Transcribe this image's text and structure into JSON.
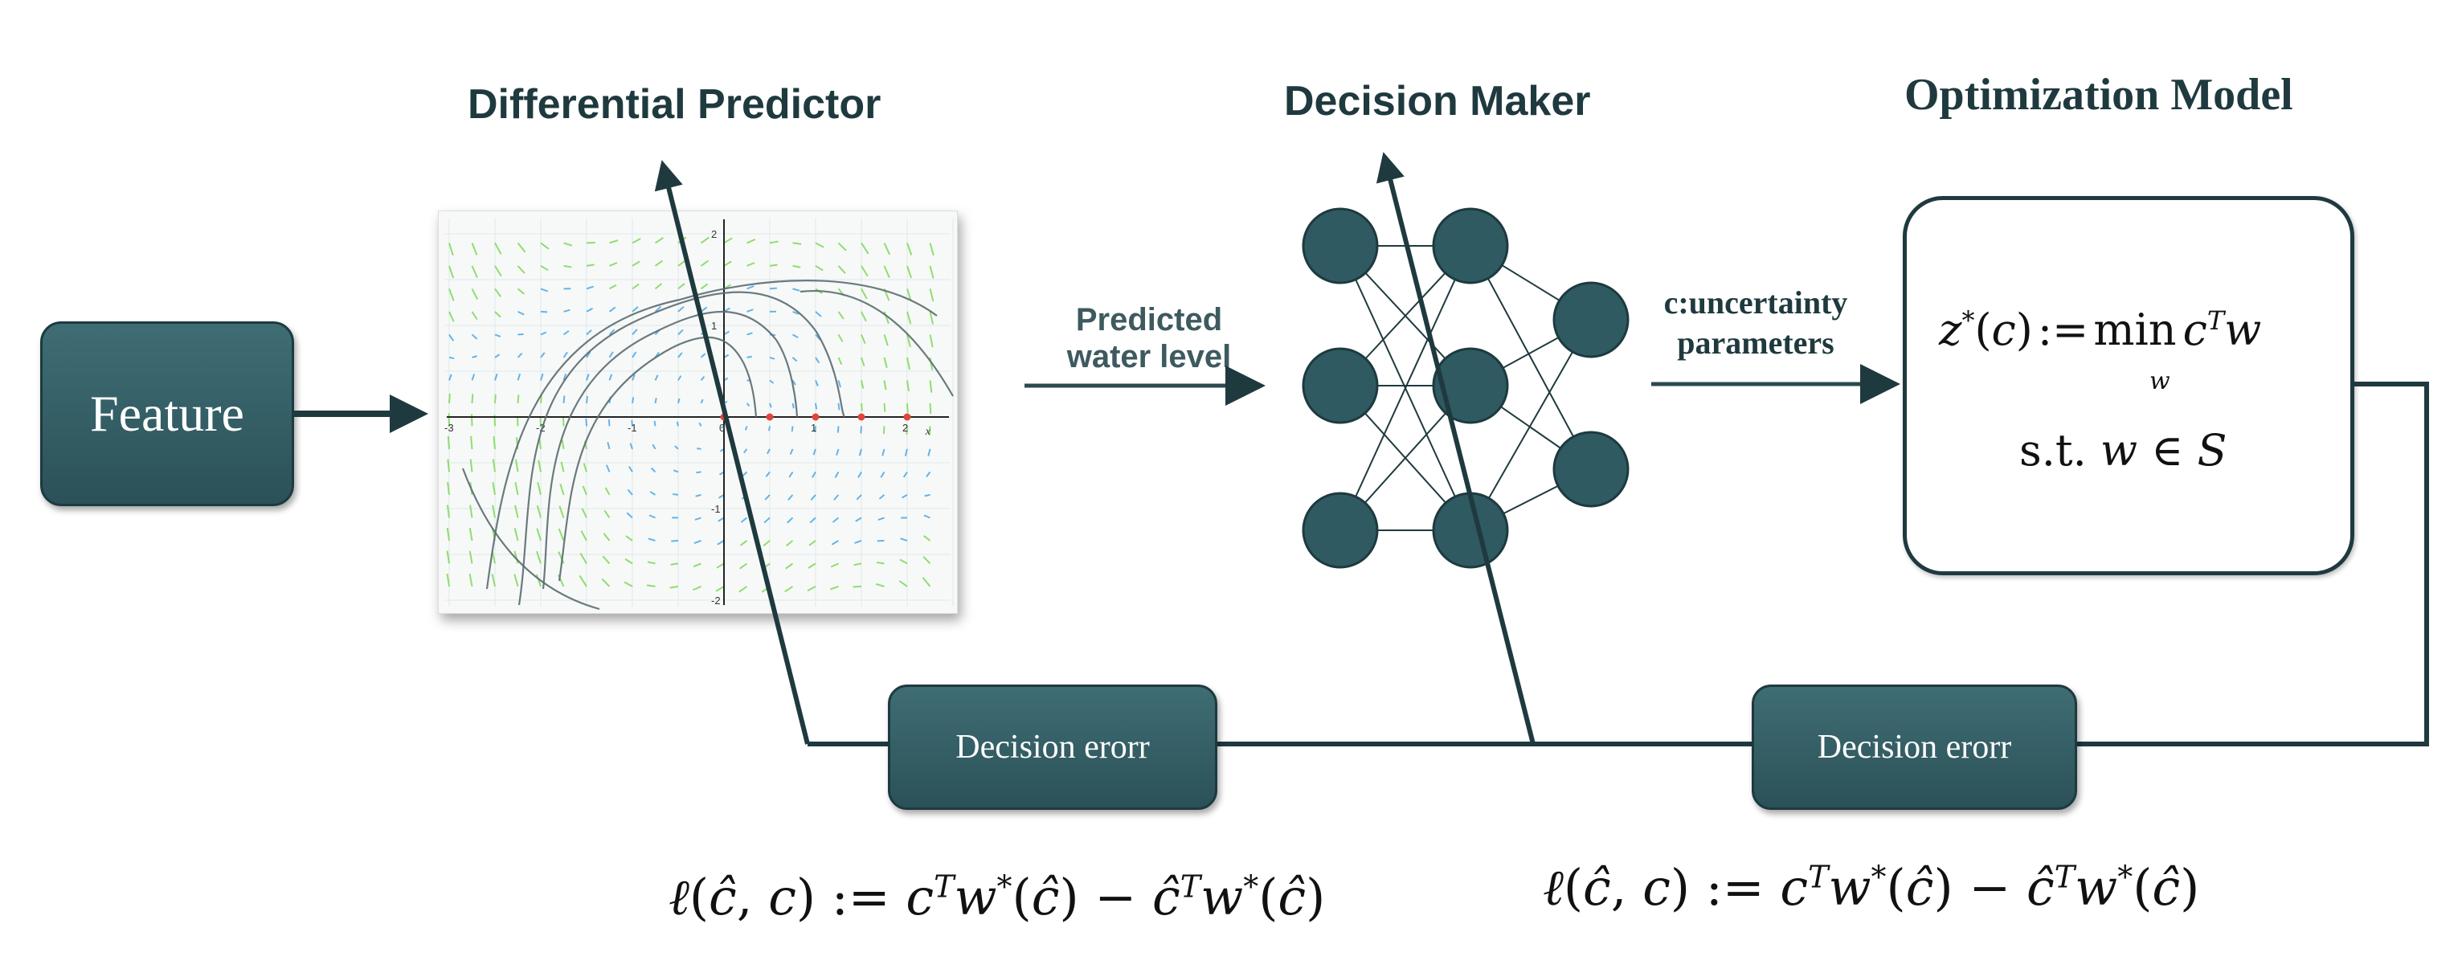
{
  "titles": {
    "differential_predictor": "Differential Predictor",
    "decision_maker": "Decision Maker",
    "optimization_model": "Optimization Model"
  },
  "feature_box": {
    "label": "Feature"
  },
  "arrow_labels": {
    "predicted_line1": "Predicted",
    "predicted_line2": "water level",
    "uncertainty_line1": "c:uncertainty",
    "uncertainty_line2": "parameters"
  },
  "optimization": {
    "objective": "z*(c) := min c^T w  (w)",
    "constraint": "s.t. w ∈ S"
  },
  "decision_error_boxes": [
    {
      "label": "Decision erorr"
    },
    {
      "label": "Decision erorr"
    }
  ],
  "loss_formula": "ℓ(ĉ, c) := c^T w*(ĉ) − ĉ^T w*(ĉ)",
  "phase_plot": {
    "x_ticks": [
      "-3",
      "-2",
      "-1",
      "0",
      "1",
      "2"
    ],
    "y_ticks": [
      "2",
      "1",
      "-1",
      "-2"
    ],
    "x_axis_label": "x"
  },
  "neural_network": {
    "layers": [
      3,
      3,
      2
    ]
  },
  "colors": {
    "teal": "#2f5a61",
    "dark": "#1f3a3f",
    "vector_green": "#7ed957",
    "vector_blue": "#4aa8e8"
  }
}
